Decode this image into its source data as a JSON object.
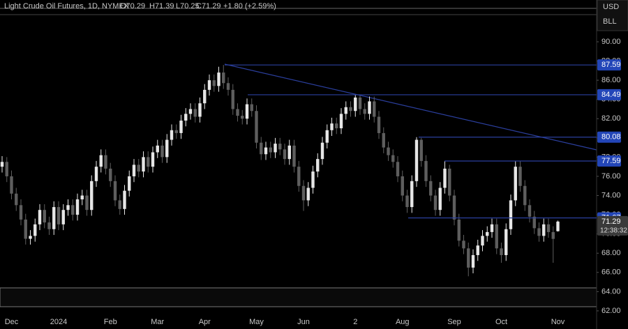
{
  "header": {
    "symbol": "Light Crude Oil Futures, 1D, NYMEX",
    "open": "O70.29",
    "high": "H71.39",
    "low": "L70.25",
    "close": "C71.29",
    "change": "+1.80 (+2.59%)",
    "currency": "USD",
    "unit": "BLL"
  },
  "chart_data": {
    "type": "candlestick",
    "categories": [
      null,
      null,
      "Dec",
      null,
      null,
      null,
      null,
      null,
      null,
      null,
      null,
      null,
      "2024",
      null,
      null,
      null,
      null,
      null,
      null,
      null,
      null,
      null,
      null,
      "Feb",
      null,
      null,
      null,
      null,
      null,
      null,
      null,
      null,
      null,
      "Mar",
      null,
      null,
      null,
      null,
      null,
      null,
      null,
      null,
      null,
      "Apr",
      null,
      null,
      null,
      null,
      null,
      null,
      null,
      null,
      null,
      null,
      "May",
      null,
      null,
      null,
      null,
      null,
      null,
      null,
      null,
      null,
      "Jun",
      null,
      null,
      null,
      null,
      null,
      null,
      null,
      null,
      null,
      null,
      "2",
      null,
      null,
      null,
      null,
      null,
      null,
      null,
      null,
      null,
      "Aug",
      null,
      null,
      null,
      null,
      null,
      null,
      null,
      null,
      null,
      null,
      "Sep",
      null,
      null,
      null,
      null,
      null,
      null,
      null,
      null,
      null,
      "Oct",
      null,
      null,
      null,
      null,
      null,
      null,
      null,
      null,
      null,
      null,
      null,
      "Nov"
    ],
    "open": [
      77.0,
      77.5,
      76.0,
      74.2,
      73.0,
      71.5,
      69.5,
      69.8,
      71.0,
      72.5,
      71.2,
      70.5,
      72.8,
      71.0,
      72.5,
      73.0,
      72.0,
      73.6,
      74.0,
      72.5,
      75.5,
      77.0,
      78.2,
      76.8,
      75.5,
      73.5,
      72.6,
      74.5,
      76.0,
      77.2,
      76.5,
      78.0,
      77.0,
      78.5,
      79.2,
      78.0,
      79.8,
      80.8,
      80.5,
      81.8,
      82.5,
      83.0,
      82.2,
      83.6,
      85.0,
      86.0,
      85.4,
      86.8,
      85.7,
      85.0,
      83.0,
      82.3,
      82.0,
      83.5,
      82.8,
      79.5,
      78.3,
      79.0,
      78.5,
      79.4,
      78.8,
      77.8,
      79.2,
      77.0,
      75.0,
      73.5,
      74.8,
      76.5,
      77.8,
      79.5,
      80.8,
      81.5,
      81.0,
      82.5,
      83.2,
      82.8,
      84.2,
      83.0,
      82.5,
      83.8,
      82.2,
      80.5,
      79.0,
      78.2,
      77.5,
      76.0,
      74.0,
      72.8,
      75.5,
      79.8,
      77.6,
      75.5,
      74.0,
      72.5,
      74.8,
      76.8,
      74.0,
      71.5,
      69.3,
      68.5,
      66.5,
      67.8,
      68.8,
      69.8,
      70.2,
      71.0,
      68.5,
      67.8,
      70.5,
      73.5,
      77.0,
      75.0,
      73.0,
      71.8,
      70.6,
      69.8,
      71.0,
      70.2,
      70.29
    ],
    "high": [
      78.1,
      78.0,
      76.6,
      74.8,
      73.6,
      72.1,
      70.4,
      71.6,
      73.1,
      73.1,
      71.8,
      73.4,
      73.4,
      73.1,
      73.6,
      73.6,
      74.2,
      74.6,
      74.6,
      76.1,
      77.6,
      78.8,
      78.8,
      77.4,
      76.1,
      74.1,
      75.1,
      76.6,
      77.8,
      77.8,
      78.6,
      78.6,
      79.1,
      79.8,
      79.8,
      80.4,
      81.4,
      81.4,
      82.4,
      83.1,
      83.6,
      83.6,
      84.2,
      85.6,
      86.6,
      86.6,
      87.4,
      87.59,
      86.3,
      85.6,
      83.6,
      82.9,
      84.1,
      84.1,
      83.4,
      80.1,
      79.6,
      79.6,
      80.0,
      80.0,
      79.4,
      79.8,
      79.8,
      77.6,
      75.6,
      75.4,
      77.1,
      78.4,
      80.1,
      81.4,
      82.1,
      82.1,
      83.1,
      83.8,
      83.8,
      84.49,
      84.4,
      83.6,
      84.3,
      84.3,
      82.8,
      81.1,
      79.6,
      78.8,
      78.1,
      76.6,
      74.6,
      76.1,
      80.08,
      80.0,
      78.2,
      76.1,
      74.6,
      75.4,
      77.59,
      77.2,
      74.6,
      72.1,
      69.9,
      69.1,
      68.4,
      69.4,
      70.4,
      70.8,
      71.6,
      71.6,
      69.1,
      71.1,
      74.1,
      77.6,
      77.6,
      75.6,
      73.6,
      72.4,
      71.2,
      71.6,
      71.6,
      70.8,
      71.39
    ],
    "low": [
      76.4,
      75.4,
      73.6,
      72.4,
      70.9,
      68.9,
      68.9,
      69.2,
      70.4,
      70.6,
      69.9,
      69.9,
      70.4,
      70.4,
      71.9,
      71.4,
      71.4,
      73.0,
      71.9,
      71.9,
      74.9,
      76.4,
      76.2,
      74.9,
      72.9,
      72.0,
      72.0,
      73.9,
      75.4,
      75.9,
      75.9,
      76.4,
      76.4,
      77.9,
      77.4,
      77.4,
      79.2,
      79.9,
      79.9,
      81.2,
      81.9,
      81.6,
      81.6,
      83.0,
      84.4,
      84.8,
      84.8,
      85.1,
      84.4,
      82.4,
      81.7,
      81.4,
      81.4,
      82.2,
      78.9,
      77.7,
      77.7,
      77.9,
      77.9,
      78.2,
      77.2,
      77.2,
      76.4,
      74.4,
      72.4,
      72.9,
      74.2,
      75.9,
      77.2,
      78.9,
      80.2,
      80.4,
      80.4,
      81.9,
      82.2,
      82.2,
      82.4,
      81.9,
      81.9,
      81.6,
      79.9,
      78.4,
      77.6,
      76.9,
      75.4,
      73.4,
      72.2,
      72.2,
      74.9,
      77.0,
      74.9,
      73.4,
      71.9,
      71.9,
      74.2,
      73.4,
      70.9,
      68.7,
      67.9,
      65.6,
      65.9,
      67.2,
      68.2,
      69.2,
      69.6,
      67.9,
      67.0,
      67.2,
      69.9,
      72.9,
      74.4,
      72.4,
      71.2,
      70.0,
      69.2,
      69.2,
      69.6,
      67.0,
      70.25
    ],
    "close": [
      77.5,
      76.0,
      74.2,
      73.0,
      71.5,
      69.5,
      69.8,
      71.0,
      72.5,
      71.2,
      70.5,
      72.8,
      71.0,
      72.5,
      73.0,
      72.0,
      73.6,
      74.0,
      72.5,
      75.5,
      77.0,
      78.2,
      76.8,
      75.5,
      73.5,
      72.6,
      74.5,
      76.0,
      77.2,
      76.5,
      78.0,
      77.0,
      78.5,
      79.2,
      78.0,
      79.8,
      80.8,
      80.5,
      81.8,
      82.5,
      83.0,
      82.2,
      83.6,
      85.0,
      86.0,
      85.4,
      86.8,
      85.7,
      85.0,
      83.0,
      82.3,
      82.0,
      83.5,
      82.8,
      79.5,
      78.3,
      79.0,
      78.5,
      79.4,
      78.8,
      77.8,
      79.2,
      77.0,
      75.0,
      73.5,
      74.8,
      76.5,
      77.8,
      79.5,
      80.8,
      81.5,
      81.0,
      82.5,
      83.2,
      82.8,
      84.2,
      83.0,
      82.5,
      83.8,
      82.2,
      80.5,
      79.0,
      78.2,
      77.5,
      76.0,
      74.0,
      72.8,
      75.5,
      79.8,
      77.6,
      75.5,
      74.0,
      72.5,
      74.8,
      76.8,
      74.0,
      71.5,
      69.3,
      68.5,
      66.5,
      67.8,
      68.8,
      69.8,
      70.2,
      71.0,
      68.5,
      67.8,
      70.5,
      73.5,
      77.0,
      75.0,
      73.0,
      71.8,
      70.6,
      69.8,
      71.0,
      70.2,
      69.49,
      71.29
    ],
    "up_color": "#e6e6e6",
    "down_color": "#5e5e5e",
    "ylim": [
      60.11,
      94.35
    ],
    "yticks": [
      {
        "value": 62,
        "label": "62.00"
      },
      {
        "value": 64,
        "label": "64.00"
      },
      {
        "value": 66,
        "label": "66.00"
      },
      {
        "value": 68,
        "label": "68.00"
      },
      {
        "value": 70,
        "label": "70.00"
      },
      {
        "value": 72,
        "label": "72.00"
      },
      {
        "value": 74,
        "label": "74.00"
      },
      {
        "value": 76,
        "label": "76.00"
      },
      {
        "value": 78,
        "label": "78.00"
      },
      {
        "value": 80,
        "label": "80.00"
      },
      {
        "value": 82,
        "label": "82.00"
      },
      {
        "value": 84,
        "label": "84.00"
      },
      {
        "value": 86,
        "label": "86.00"
      },
      {
        "value": 88,
        "label": "88.00"
      },
      {
        "value": 90,
        "label": "90.00"
      }
    ],
    "levels": [
      87.59,
      84.49,
      80.08,
      77.59,
      71.67
    ],
    "level_color": "#2b3f9e",
    "last_price": 71.29,
    "countdown": "12:38:32"
  }
}
